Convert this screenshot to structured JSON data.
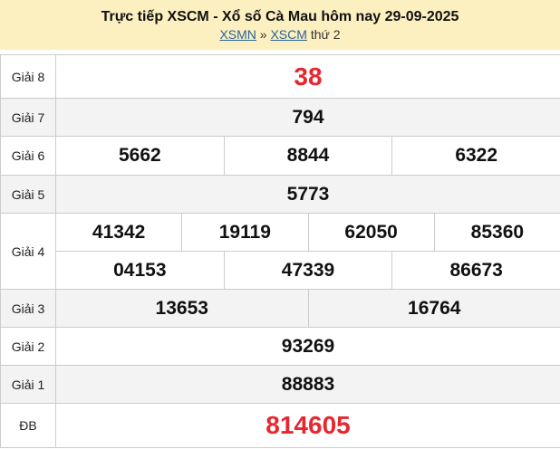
{
  "header": {
    "title": "Trực tiếp XSCM - Xổ số Cà Mau hôm nay 29-09-2025",
    "breadcrumb": {
      "link1": "XSMN",
      "sep": "»",
      "link2": "XSCM",
      "suffix": "thứ 2"
    }
  },
  "colors": {
    "highlight": "#e8262e",
    "header_bg": "#fcefc0"
  },
  "prizes": [
    {
      "label": "Giải 8",
      "rows": [
        [
          "38"
        ]
      ]
    },
    {
      "label": "Giải 7",
      "rows": [
        [
          "794"
        ]
      ]
    },
    {
      "label": "Giải 6",
      "rows": [
        [
          "5662",
          "8844",
          "6322"
        ]
      ]
    },
    {
      "label": "Giải 5",
      "rows": [
        [
          "5773"
        ]
      ]
    },
    {
      "label": "Giải 4",
      "rows": [
        [
          "41342",
          "19119",
          "62050",
          "85360"
        ],
        [
          "04153",
          "47339",
          "86673"
        ]
      ]
    },
    {
      "label": "Giải 3",
      "rows": [
        [
          "13653",
          "16764"
        ]
      ]
    },
    {
      "label": "Giải 2",
      "rows": [
        [
          "93269"
        ]
      ]
    },
    {
      "label": "Giải 1",
      "rows": [
        [
          "88883"
        ]
      ]
    },
    {
      "label": "ĐB",
      "rows": [
        [
          "814605"
        ]
      ]
    }
  ]
}
